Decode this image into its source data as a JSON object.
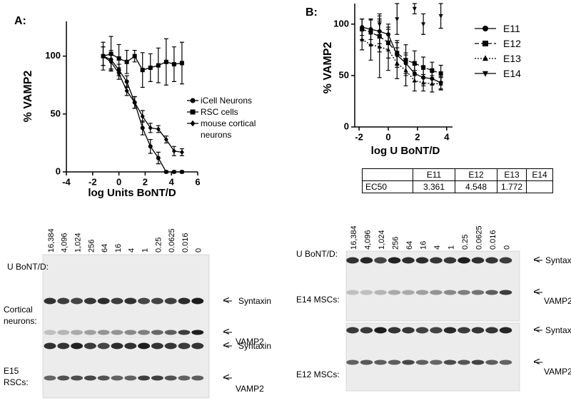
{
  "chart_data": [
    {
      "type": "scatter",
      "title": "A:",
      "xlabel": "log Units BoNT/D",
      "ylabel": "% VAMP2",
      "xlim": [
        -4,
        6
      ],
      "xticks": [
        -4,
        -2,
        0,
        2,
        4,
        6
      ],
      "ylim": [
        0,
        130
      ],
      "yticks": [
        0,
        50,
        100
      ],
      "series": [
        {
          "name": "iCell Neurons",
          "color": "#000000",
          "marker": "circle",
          "dash": "solid",
          "x": [
            -1.2,
            -0.6,
            0,
            0.6,
            1.2,
            1.8,
            2.4,
            3.0,
            3.6,
            4.2,
            4.8
          ],
          "values": [
            100,
            97,
            88,
            78,
            60,
            38,
            22,
            12,
            0,
            0,
            0
          ],
          "errors": [
            8,
            8,
            5,
            5,
            5,
            6,
            6,
            5,
            1,
            1,
            1
          ]
        },
        {
          "name": "RSC cells",
          "color": "#000000",
          "marker": "square",
          "dash": "solid",
          "x": [
            -1.2,
            -0.6,
            0,
            0.6,
            1.2,
            1.8,
            2.4,
            3.0,
            3.6,
            4.2,
            4.8
          ],
          "values": [
            100,
            102,
            98,
            95,
            100,
            88,
            90,
            92,
            95,
            93,
            94
          ],
          "errors": [
            12,
            15,
            12,
            10,
            5,
            15,
            12,
            15,
            20,
            15,
            18
          ]
        },
        {
          "name": "mouse cortical neurons",
          "color": "#000000",
          "marker": "diamond",
          "dash": "solid",
          "x": [
            -1.2,
            -0.6,
            0,
            0.6,
            1.2,
            1.8,
            2.4,
            3.0,
            3.6,
            4.2,
            4.8
          ],
          "values": [
            100,
            95,
            85,
            70,
            60,
            48,
            38,
            37,
            28,
            18,
            17
          ],
          "errors": [
            8,
            7,
            5,
            4,
            5,
            5,
            4,
            3,
            3,
            4,
            3
          ]
        }
      ]
    },
    {
      "type": "scatter",
      "title": "B:",
      "xlabel": "log U BoNT/D",
      "ylabel": "% VAMP2",
      "xlim": [
        -2.3,
        4.4
      ],
      "xticks": [
        -2,
        0,
        2,
        4
      ],
      "ylim": [
        0,
        120
      ],
      "yticks": [
        0,
        50,
        100
      ],
      "series": [
        {
          "name": "E11",
          "color": "#000000",
          "marker": "circle",
          "dash": "solid",
          "x": [
            -1.8,
            -1.2,
            -0.6,
            0,
            0.6,
            1.2,
            1.8,
            2.4,
            3.0,
            3.6
          ],
          "values": [
            97,
            95,
            93,
            90,
            70,
            62,
            52,
            48,
            47,
            43
          ],
          "errors": [
            8,
            10,
            12,
            10,
            12,
            10,
            8,
            8,
            6,
            6
          ]
        },
        {
          "name": "E12",
          "color": "#000000",
          "marker": "square",
          "dash": "dashed",
          "x": [
            -1.8,
            -1.2,
            -0.6,
            0,
            0.6,
            1.2,
            1.8,
            2.4,
            3.0,
            3.6
          ],
          "values": [
            95,
            92,
            88,
            82,
            72,
            65,
            62,
            58,
            55,
            52
          ],
          "errors": [
            10,
            12,
            15,
            15,
            12,
            15,
            12,
            10,
            8,
            8
          ]
        },
        {
          "name": "E13",
          "color": "#000000",
          "marker": "triangle",
          "dash": "dotted",
          "x": [
            -1.8,
            -1.2,
            -0.6,
            0,
            0.6,
            1.2,
            1.8,
            2.4,
            3.0,
            3.6
          ],
          "values": [
            85,
            80,
            78,
            75,
            62,
            55,
            45,
            43,
            42,
            42
          ],
          "errors": [
            10,
            15,
            30,
            20,
            15,
            15,
            10,
            8,
            8,
            6
          ]
        },
        {
          "name": "E14",
          "color": "#000000",
          "marker": "triangle-down",
          "dash": "solid",
          "line": false,
          "x": [
            -0.6,
            0.6,
            1.8,
            2.4,
            3.6
          ],
          "values": [
            100,
            105,
            115,
            100,
            108
          ],
          "errors": [
            10,
            15,
            5,
            10,
            12
          ]
        }
      ]
    }
  ],
  "table": {
    "columns": [
      "E11",
      "E12",
      "E13",
      "E14"
    ],
    "row_label": "EC50",
    "values": [
      "3.361",
      "4.548",
      "1.772",
      null
    ]
  },
  "blots": {
    "left": {
      "lanes": [
        "16,384",
        "4,096",
        "1,024",
        "256",
        "64",
        "16",
        "4",
        "1",
        "0.25",
        "0.0625",
        "0.016",
        "0"
      ],
      "dose_label": "U BoNT/D:",
      "upper_label": "Cortical neurons:",
      "lower_label": "E15 RSCs:",
      "bands": [
        "Syntaxin",
        "VAMP2",
        "Syntaxin",
        "VAMP2"
      ]
    },
    "right": {
      "lanes": [
        "16,384",
        "4,096",
        "1,024",
        "256",
        "64",
        "16",
        "4",
        "1",
        "0.25",
        "0.0625",
        "0.016",
        "0"
      ],
      "dose_label": "U BoNT/D:",
      "upper_label": "E14 MSCs:",
      "lower_label": "E12 MSCs:",
      "bands": [
        "Syntaxin",
        "VAMP2",
        "Syntaxin",
        "VAMP2"
      ]
    }
  }
}
